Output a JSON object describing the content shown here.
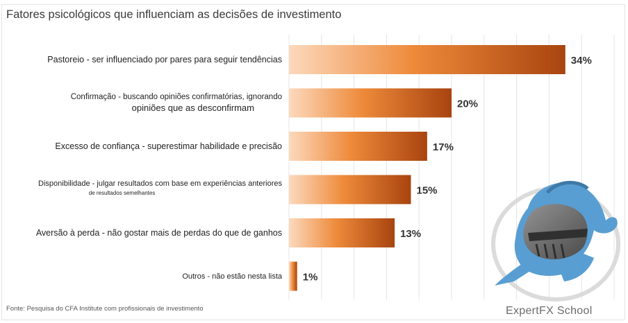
{
  "chart_data": {
    "type": "bar",
    "orientation": "horizontal",
    "title": "Fatores psicológicos que influenciam as decisões de investimento",
    "categories": [
      {
        "line1": "Pastoreio - ser influenciado por pares para seguir tendências",
        "line2": ""
      },
      {
        "line1": "Confirmação - buscando opiniões confirmatórias, ignorando",
        "line2": "opiniões que as desconfirmam"
      },
      {
        "line1": "Excesso de confiança - superestimar habilidade e precisão",
        "line2": ""
      },
      {
        "line1": "Disponibilidade - julgar resultados com base em experiências anteriores",
        "line2": "de resultados semelhantes"
      },
      {
        "line1": "Aversão à perda - não gostar mais de perdas do que de ganhos",
        "line2": ""
      },
      {
        "line1": "Outros - não estão nesta lista",
        "line2": ""
      }
    ],
    "values": [
      34,
      20,
      17,
      15,
      13,
      1
    ],
    "value_labels": [
      "34%",
      "20%",
      "17%",
      "15%",
      "13%",
      "1%"
    ],
    "unit": "%",
    "xlim": [
      0,
      40
    ],
    "grid": true,
    "bar_colors": {
      "light": "#fcd9bd",
      "mid": "#ee8a3a",
      "dark": "#a8440f"
    },
    "source": "Fonte: Pesquisa do CFA Institute com profissionais de investimento"
  },
  "watermark": {
    "brand": "ExpertFX School",
    "helmet_color": "#3f8fc9",
    "icon": "knight-helmet-icon"
  }
}
